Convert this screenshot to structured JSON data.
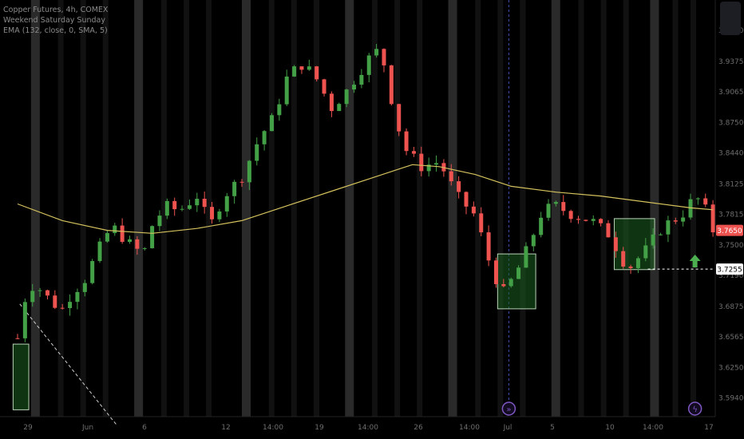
{
  "legend": {
    "symbol_line": "Copper Futures, 4h, COMEX",
    "indicator_1": "Weekend Saturday Sunday",
    "indicator_2": "EMA (132, close, 0, SMA, 5)"
  },
  "colors": {
    "background": "#000000",
    "up_candle": "#43a047",
    "down_candle": "#ef5350",
    "ema_line": "#d4c25e",
    "weekend_band": "#2a2a2a",
    "box_fill": "#1b5e20",
    "box_border": "#b9d3b5",
    "price_badge_current": "#ef5350",
    "price_badge_level": "#ffffff",
    "arrow": "#4caf50",
    "event_icon": "#7e57c2",
    "axis_text": "#6e6e6e"
  },
  "chart_data": {
    "type": "candlestick",
    "symbol": "Copper Futures",
    "interval": "4h",
    "exchange": "COMEX",
    "y_tick_labels": [
      "3.9690",
      "3.9375",
      "3.9065",
      "3.8750",
      "3.8440",
      "3.8125",
      "3.7815",
      "3.7500",
      "3.7190",
      "3.6875",
      "3.6565",
      "3.6250",
      "3.5940"
    ],
    "y_tick_values": [
      3.969,
      3.9375,
      3.9065,
      3.875,
      3.844,
      3.8125,
      3.7815,
      3.75,
      3.719,
      3.6875,
      3.6565,
      3.625,
      3.594
    ],
    "ylim": [
      3.575,
      4.0
    ],
    "x_tick_labels": [
      "29",
      "Jun",
      "6",
      "12",
      "14:00",
      "19",
      "14:00",
      "26",
      "14:00",
      "Jul",
      "5",
      "10",
      "14:00",
      "17"
    ],
    "current_price": "3.7650",
    "level_price": "3.7255",
    "close_path": [
      [
        0,
        3.655
      ],
      [
        0.1,
        3.675
      ],
      [
        0.2,
        3.705
      ],
      [
        0.4,
        3.71
      ],
      [
        0.6,
        3.7
      ],
      [
        0.8,
        3.69
      ],
      [
        1.0,
        3.685
      ],
      [
        1.2,
        3.7
      ],
      [
        1.5,
        3.715
      ],
      [
        1.8,
        3.745
      ],
      [
        2.1,
        3.77
      ],
      [
        2.4,
        3.755
      ],
      [
        2.8,
        3.74
      ],
      [
        3.0,
        3.77
      ],
      [
        3.3,
        3.79
      ],
      [
        3.6,
        3.785
      ],
      [
        4.0,
        3.8
      ],
      [
        4.3,
        3.77
      ],
      [
        4.6,
        3.8
      ],
      [
        5.0,
        3.82
      ],
      [
        5.4,
        3.86
      ],
      [
        5.7,
        3.88
      ],
      [
        6.0,
        3.92
      ],
      [
        6.3,
        3.935
      ],
      [
        6.6,
        3.925
      ],
      [
        7.0,
        3.89
      ],
      [
        7.3,
        3.905
      ],
      [
        7.6,
        3.925
      ],
      [
        7.9,
        3.945
      ],
      [
        8.1,
        3.95
      ],
      [
        8.3,
        3.905
      ],
      [
        8.6,
        3.85
      ],
      [
        9.0,
        3.83
      ],
      [
        9.4,
        3.835
      ],
      [
        9.8,
        3.8
      ],
      [
        10.2,
        3.78
      ],
      [
        10.5,
        3.735
      ],
      [
        10.8,
        3.7
      ],
      [
        11.1,
        3.72
      ],
      [
        11.4,
        3.75
      ],
      [
        11.7,
        3.785
      ],
      [
        12.0,
        3.79
      ],
      [
        12.4,
        3.78
      ],
      [
        12.8,
        3.775
      ],
      [
        13.2,
        3.76
      ],
      [
        13.6,
        3.725
      ],
      [
        14.0,
        3.745
      ],
      [
        14.4,
        3.77
      ],
      [
        14.8,
        3.78
      ],
      [
        15.1,
        3.8
      ],
      [
        15.3,
        3.79
      ],
      [
        15.5,
        3.765
      ]
    ],
    "ema_path": [
      [
        0,
        3.792
      ],
      [
        1.0,
        3.775
      ],
      [
        2.0,
        3.765
      ],
      [
        3.0,
        3.762
      ],
      [
        4.0,
        3.767
      ],
      [
        5.0,
        3.775
      ],
      [
        6.0,
        3.79
      ],
      [
        7.0,
        3.805
      ],
      [
        8.0,
        3.82
      ],
      [
        8.8,
        3.832
      ],
      [
        9.4,
        3.83
      ],
      [
        10.2,
        3.822
      ],
      [
        11.0,
        3.81
      ],
      [
        12.0,
        3.804
      ],
      [
        13.0,
        3.8
      ],
      [
        14.0,
        3.794
      ],
      [
        15.0,
        3.788
      ],
      [
        15.5,
        3.786
      ]
    ],
    "weekend_bands_day": [
      0.3,
      2.6,
      5.0,
      7.3,
      9.6,
      11.9,
      14.1
    ],
    "night_bands_day": [
      0.9,
      1.4,
      1.9,
      3.2,
      3.7,
      4.2,
      5.6,
      6.1,
      6.6,
      7.9,
      8.4,
      8.9,
      10.2,
      10.7,
      11.2,
      12.5,
      13.0,
      13.5,
      14.6,
      15.0
    ],
    "boxes": [
      {
        "x0": -0.1,
        "x1": 0.25,
        "y0": 3.582,
        "y1": 3.649
      },
      {
        "x0": 10.7,
        "x1": 11.55,
        "y0": 3.685,
        "y1": 3.741
      },
      {
        "x0": 13.3,
        "x1": 14.2,
        "y0": 3.725,
        "y1": 3.777
      }
    ],
    "level_line_from_day": 14.05,
    "arrow_day": 15.1,
    "arrow_price": 3.733,
    "event_icons": [
      {
        "day": 10.95,
        "label": "»"
      },
      {
        "day": 15.1,
        "label": "ϟ"
      }
    ],
    "vline_day": 10.95,
    "diag_line": [
      [
        0.05,
        3.69
      ],
      [
        2.2,
        3.567
      ]
    ]
  }
}
